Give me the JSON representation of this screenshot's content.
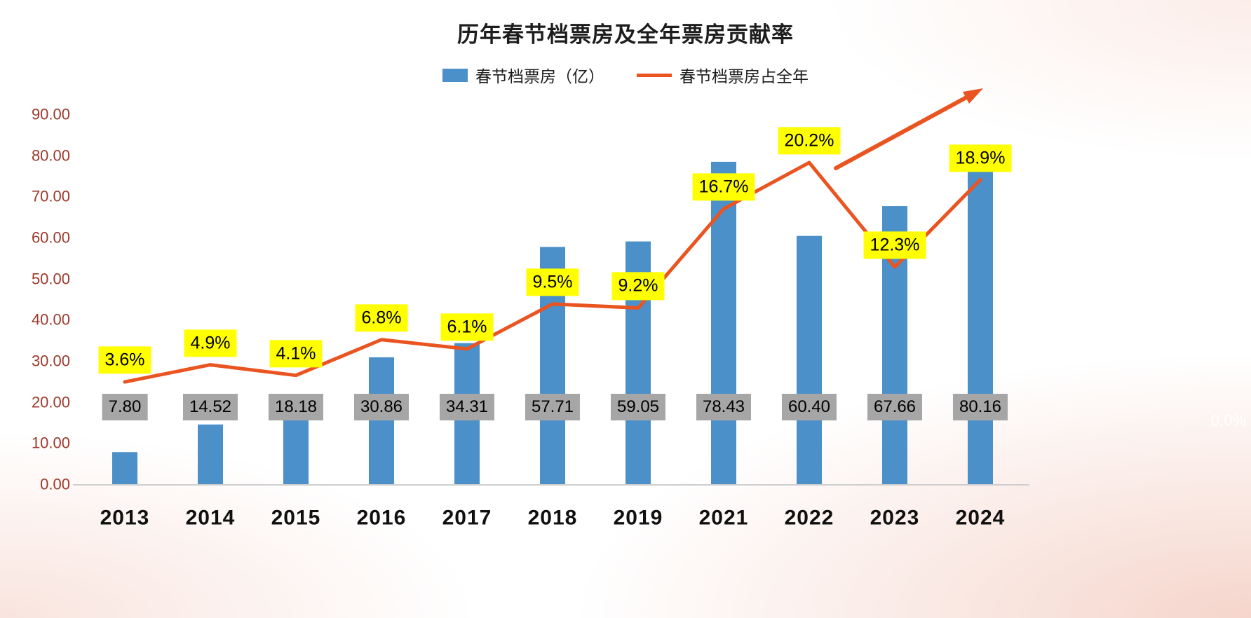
{
  "chart_data": {
    "type": "combo-bar-line",
    "title": "历年春节档票房及全年票房贡献率",
    "categories": [
      "2013",
      "2014",
      "2015",
      "2016",
      "2017",
      "2018",
      "2019",
      "2021",
      "2022",
      "2023",
      "2024"
    ],
    "series": [
      {
        "name": "春节档票房（亿）",
        "type": "bar",
        "axis": "left",
        "color": "#4B90C8",
        "label_bg": "#A6A6A6",
        "values": [
          7.8,
          14.52,
          18.18,
          30.86,
          34.31,
          57.71,
          59.05,
          78.43,
          60.4,
          67.66,
          80.16
        ],
        "labels": [
          "7.80",
          "14.52",
          "18.18",
          "30.86",
          "34.31",
          "57.71",
          "59.05",
          "78.43",
          "60.40",
          "67.66",
          "80.16"
        ]
      },
      {
        "name": "春节档票房占全年",
        "type": "line",
        "axis": "right",
        "color": "#E95420",
        "label_bg": "#FFFF00",
        "values": [
          3.6,
          4.9,
          4.1,
          6.8,
          6.1,
          9.5,
          9.2,
          16.7,
          20.2,
          12.3,
          18.9
        ],
        "labels": [
          "3.6%",
          "4.9%",
          "4.1%",
          "6.8%",
          "6.1%",
          "9.5%",
          "9.2%",
          "16.7%",
          "20.2%",
          "12.3%",
          "18.9%"
        ]
      }
    ],
    "left_axis": {
      "min": 0,
      "max": 90,
      "ticks": [
        "0.00",
        "10.00",
        "20.00",
        "30.00",
        "40.00",
        "50.00",
        "60.00",
        "70.00",
        "80.00",
        "90.00"
      ]
    },
    "right_axis_faint_label": "0.0%",
    "annotation": {
      "type": "up-arrow"
    },
    "legend_position": "top",
    "grid": false
  }
}
